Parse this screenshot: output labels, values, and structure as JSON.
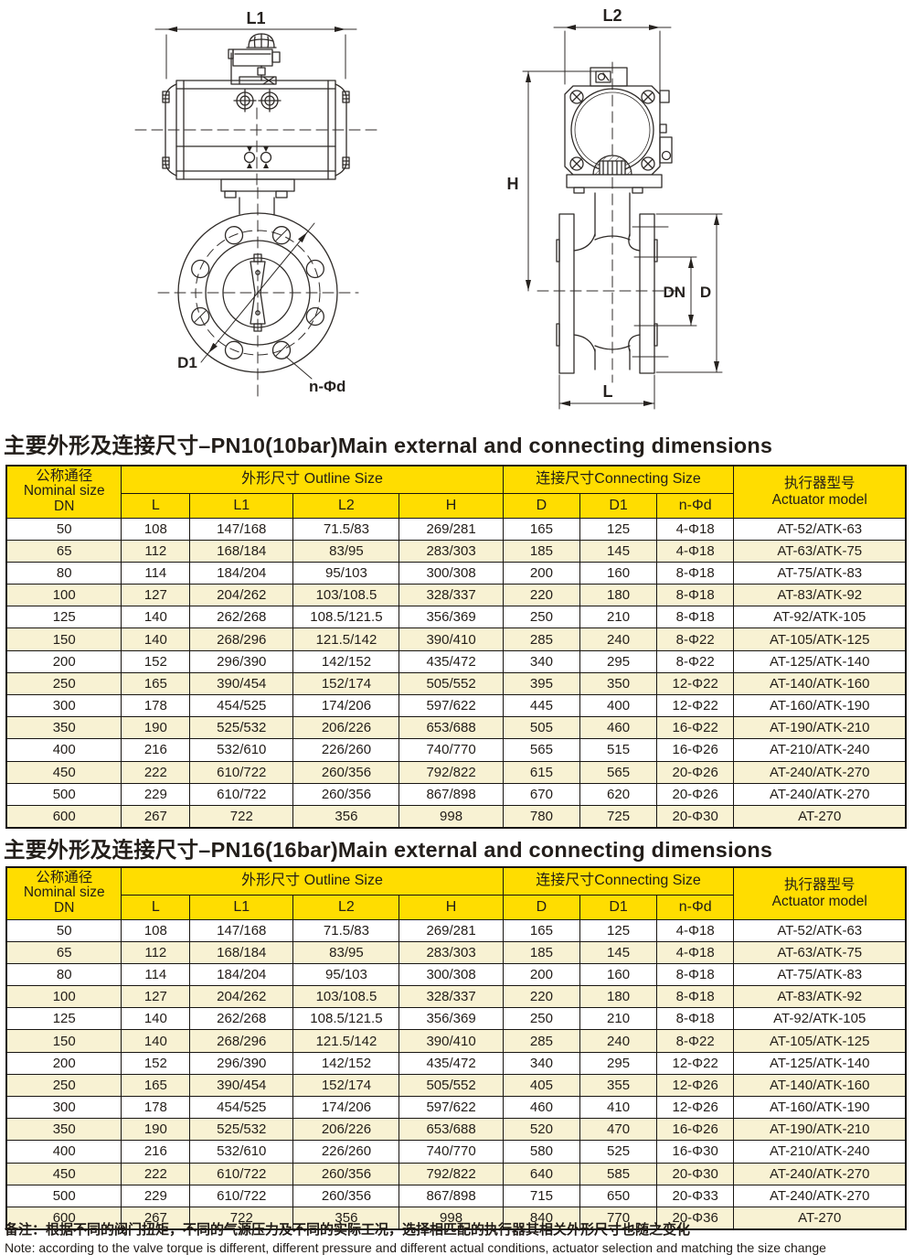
{
  "page": {
    "title_pn10": "主要外形及连接尺寸–PN10(10bar)Main external and connecting dimensions",
    "title_pn16": "主要外形及连接尺寸–PN16(16bar)Main external and connecting dimensions",
    "note_zh": "备注：根据不同的阀门扭矩，不同的气源压力及不同的实际工况，选择相匹配的执行器其相关外形尺寸也随之变化",
    "note_en": "Note: according to the valve torque is different, different pressure and different actual conditions, actuator selection and matching the size change"
  },
  "drawing_labels": {
    "l1": "L1",
    "l2": "L2",
    "h": "H",
    "dn": "DN",
    "d": "D",
    "l": "L",
    "d1": "D1",
    "n_phi_d": "n-Φd"
  },
  "table_headers": {
    "nominal_zh": "公称通径",
    "nominal_en": "Nominal size",
    "nominal_dn": "DN",
    "outline": "外形尺寸 Outline Size",
    "connecting": "连接尺寸Connecting Size",
    "actuator_zh": "执行器型号",
    "actuator_en": "Actuator model",
    "sub": [
      "L",
      "L1",
      "L2",
      "H",
      "D",
      "D1",
      "n-Φd"
    ]
  },
  "colors": {
    "header_bg": "#ffdd00",
    "row_alt_bg": "#f8f2d3",
    "border": "#181512"
  },
  "pn10_rows": [
    [
      "50",
      "108",
      "147/168",
      "71.5/83",
      "269/281",
      "165",
      "125",
      "4-Φ18",
      "AT-52/ATK-63"
    ],
    [
      "65",
      "112",
      "168/184",
      "83/95",
      "283/303",
      "185",
      "145",
      "4-Φ18",
      "AT-63/ATK-75"
    ],
    [
      "80",
      "114",
      "184/204",
      "95/103",
      "300/308",
      "200",
      "160",
      "8-Φ18",
      "AT-75/ATK-83"
    ],
    [
      "100",
      "127",
      "204/262",
      "103/108.5",
      "328/337",
      "220",
      "180",
      "8-Φ18",
      "AT-83/ATK-92"
    ],
    [
      "125",
      "140",
      "262/268",
      "108.5/121.5",
      "356/369",
      "250",
      "210",
      "8-Φ18",
      "AT-92/ATK-105"
    ],
    [
      "150",
      "140",
      "268/296",
      "121.5/142",
      "390/410",
      "285",
      "240",
      "8-Φ22",
      "AT-105/ATK-125"
    ],
    [
      "200",
      "152",
      "296/390",
      "142/152",
      "435/472",
      "340",
      "295",
      "8-Φ22",
      "AT-125/ATK-140"
    ],
    [
      "250",
      "165",
      "390/454",
      "152/174",
      "505/552",
      "395",
      "350",
      "12-Φ22",
      "AT-140/ATK-160"
    ],
    [
      "300",
      "178",
      "454/525",
      "174/206",
      "597/622",
      "445",
      "400",
      "12-Φ22",
      "AT-160/ATK-190"
    ],
    [
      "350",
      "190",
      "525/532",
      "206/226",
      "653/688",
      "505",
      "460",
      "16-Φ22",
      "AT-190/ATK-210"
    ],
    [
      "400",
      "216",
      "532/610",
      "226/260",
      "740/770",
      "565",
      "515",
      "16-Φ26",
      "AT-210/ATK-240"
    ],
    [
      "450",
      "222",
      "610/722",
      "260/356",
      "792/822",
      "615",
      "565",
      "20-Φ26",
      "AT-240/ATK-270"
    ],
    [
      "500",
      "229",
      "610/722",
      "260/356",
      "867/898",
      "670",
      "620",
      "20-Φ26",
      "AT-240/ATK-270"
    ],
    [
      "600",
      "267",
      "722",
      "356",
      "998",
      "780",
      "725",
      "20-Φ30",
      "AT-270"
    ]
  ],
  "pn16_rows": [
    [
      "50",
      "108",
      "147/168",
      "71.5/83",
      "269/281",
      "165",
      "125",
      "4-Φ18",
      "AT-52/ATK-63"
    ],
    [
      "65",
      "112",
      "168/184",
      "83/95",
      "283/303",
      "185",
      "145",
      "4-Φ18",
      "AT-63/ATK-75"
    ],
    [
      "80",
      "114",
      "184/204",
      "95/103",
      "300/308",
      "200",
      "160",
      "8-Φ18",
      "AT-75/ATK-83"
    ],
    [
      "100",
      "127",
      "204/262",
      "103/108.5",
      "328/337",
      "220",
      "180",
      "8-Φ18",
      "AT-83/ATK-92"
    ],
    [
      "125",
      "140",
      "262/268",
      "108.5/121.5",
      "356/369",
      "250",
      "210",
      "8-Φ18",
      "AT-92/ATK-105"
    ],
    [
      "150",
      "140",
      "268/296",
      "121.5/142",
      "390/410",
      "285",
      "240",
      "8-Φ22",
      "AT-105/ATK-125"
    ],
    [
      "200",
      "152",
      "296/390",
      "142/152",
      "435/472",
      "340",
      "295",
      "12-Φ22",
      "AT-125/ATK-140"
    ],
    [
      "250",
      "165",
      "390/454",
      "152/174",
      "505/552",
      "405",
      "355",
      "12-Φ26",
      "AT-140/ATK-160"
    ],
    [
      "300",
      "178",
      "454/525",
      "174/206",
      "597/622",
      "460",
      "410",
      "12-Φ26",
      "AT-160/ATK-190"
    ],
    [
      "350",
      "190",
      "525/532",
      "206/226",
      "653/688",
      "520",
      "470",
      "16-Φ26",
      "AT-190/ATK-210"
    ],
    [
      "400",
      "216",
      "532/610",
      "226/260",
      "740/770",
      "580",
      "525",
      "16-Φ30",
      "AT-210/ATK-240"
    ],
    [
      "450",
      "222",
      "610/722",
      "260/356",
      "792/822",
      "640",
      "585",
      "20-Φ30",
      "AT-240/ATK-270"
    ],
    [
      "500",
      "229",
      "610/722",
      "260/356",
      "867/898",
      "715",
      "650",
      "20-Φ33",
      "AT-240/ATK-270"
    ],
    [
      "600",
      "267",
      "722",
      "356",
      "998",
      "840",
      "770",
      "20-Φ36",
      "AT-270"
    ]
  ]
}
